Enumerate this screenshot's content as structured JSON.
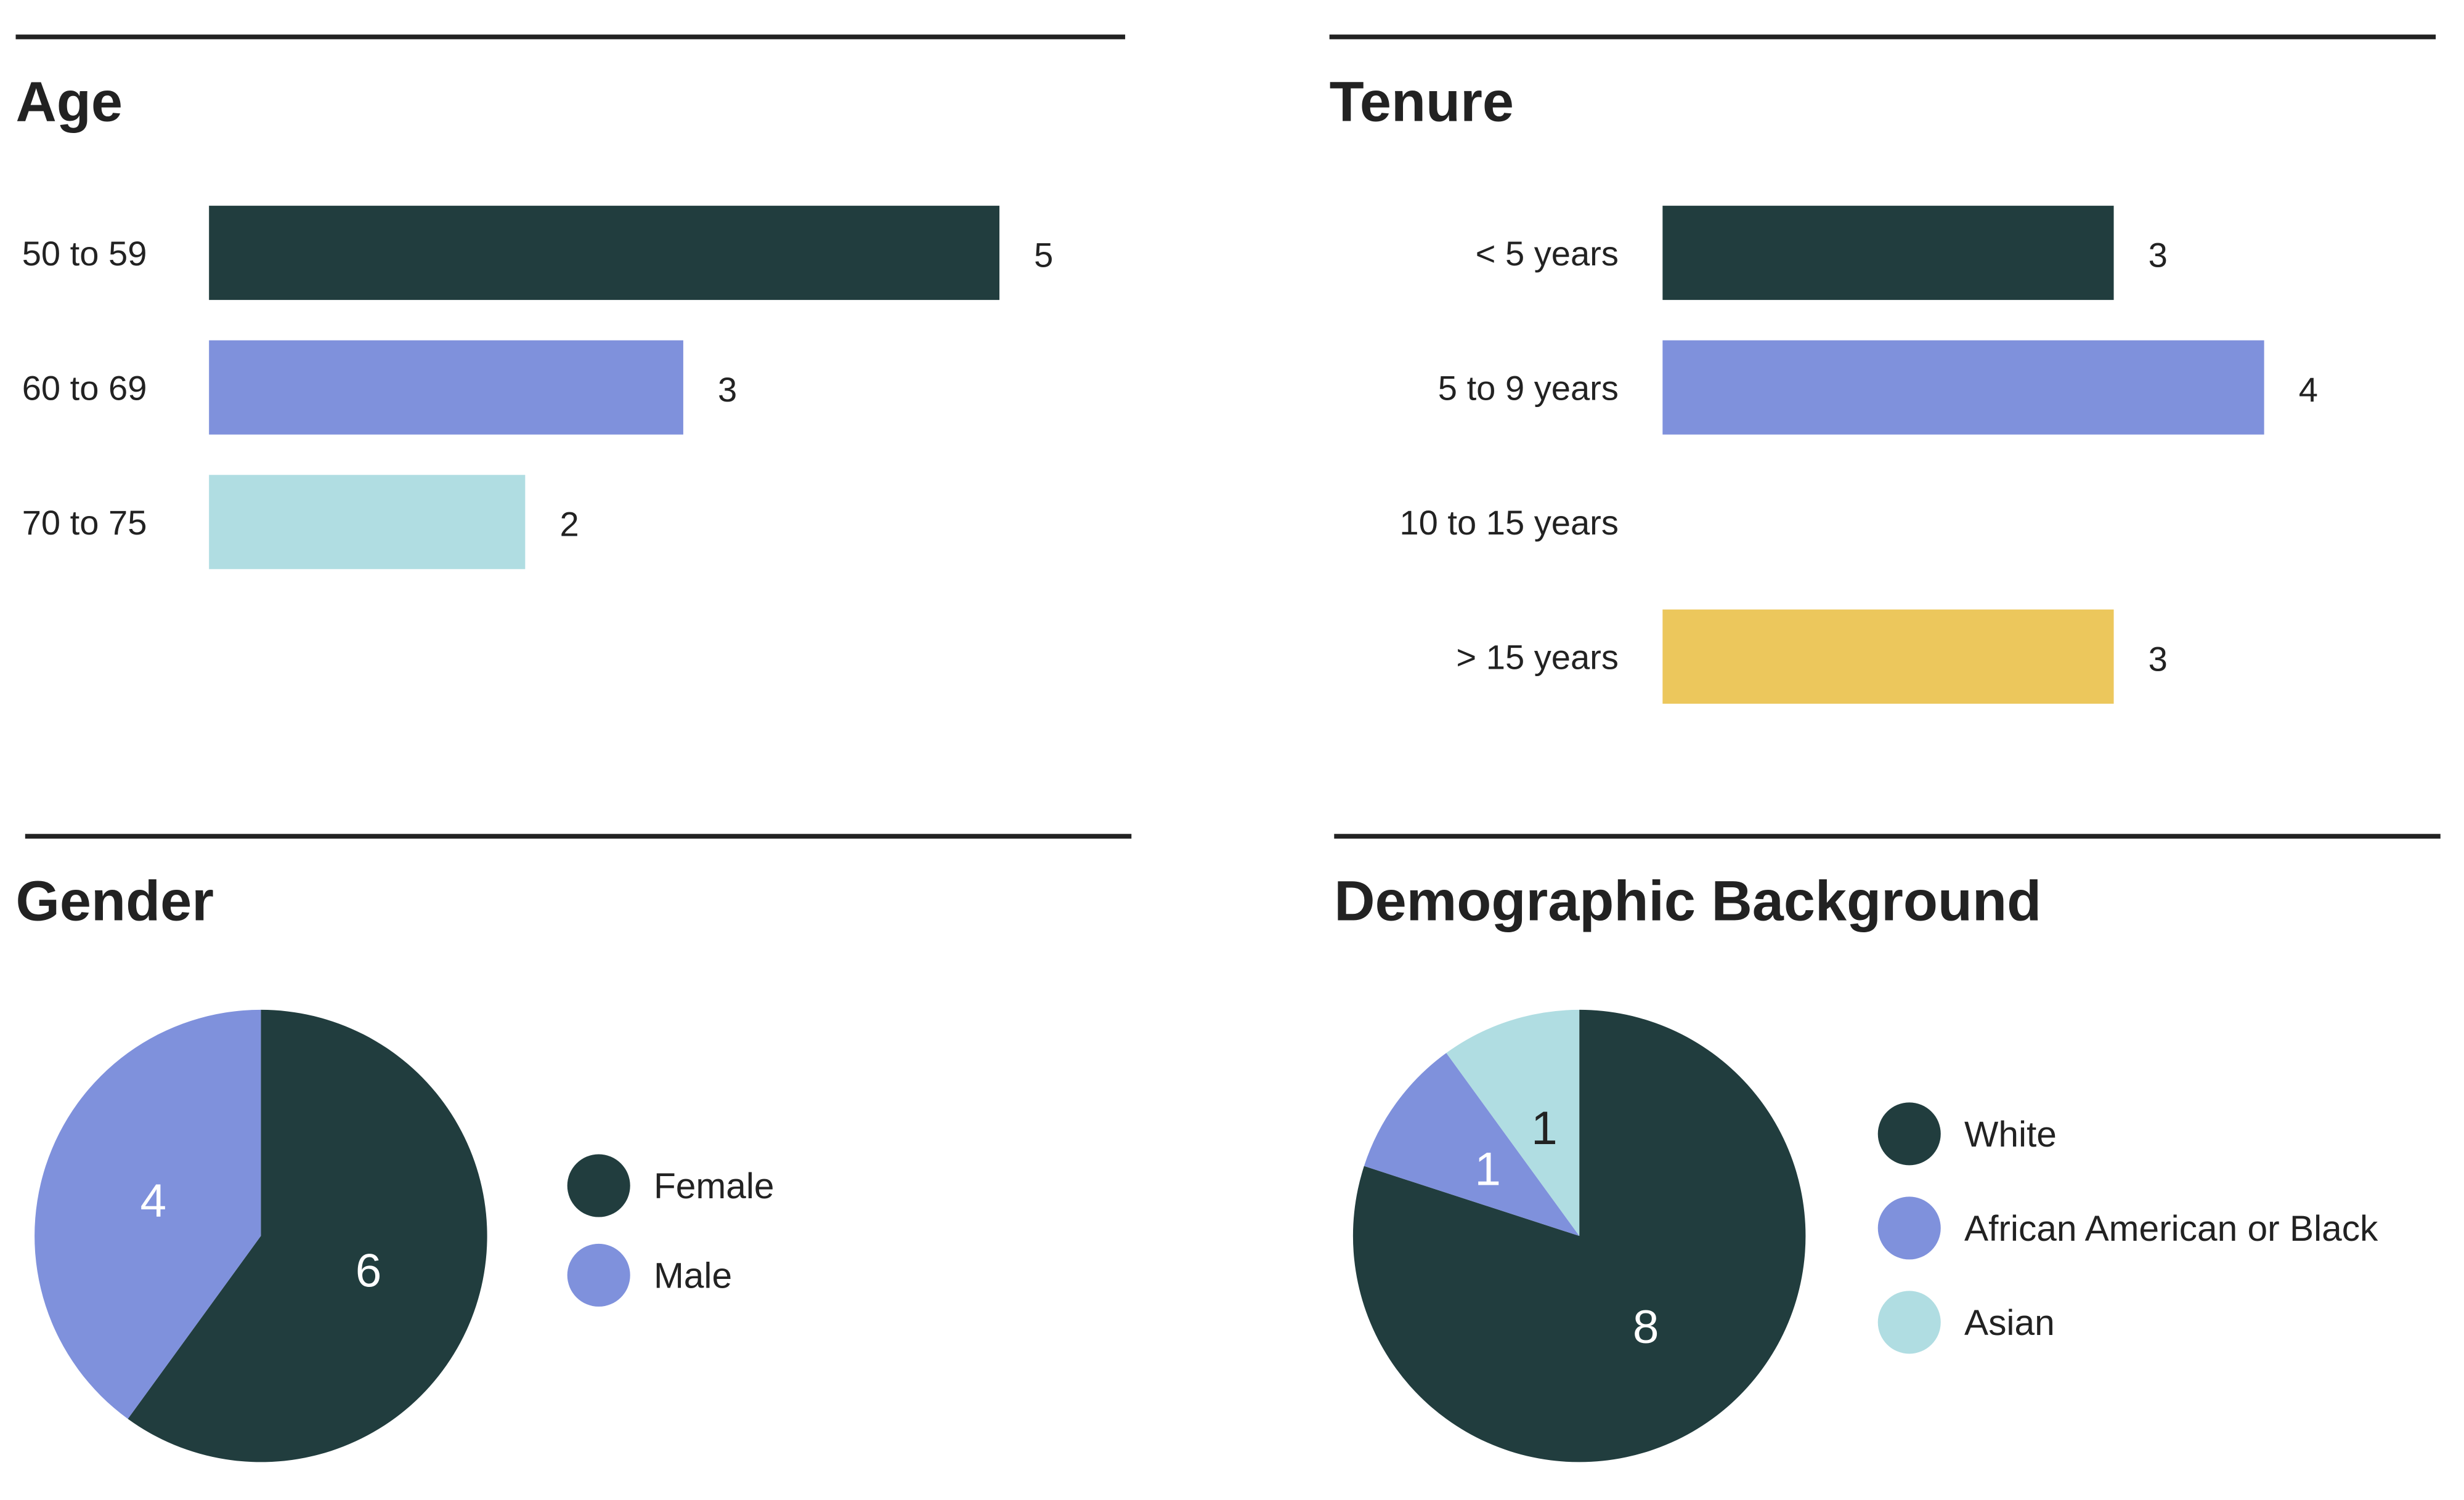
{
  "colors": {
    "dark": "#213d3e",
    "purple": "#7f91dc",
    "lightblue": "#b0dde2",
    "yellow": "#ecc75c",
    "text": "#222222"
  },
  "chart_data": [
    {
      "type": "bar",
      "orientation": "horizontal",
      "title": "Age",
      "categories": [
        "50 to 59",
        "60 to 69",
        "70 to 75"
      ],
      "values": [
        5,
        3,
        2
      ],
      "colors": [
        "#213d3e",
        "#7f91dc",
        "#b0dde2"
      ],
      "data_labels": true,
      "grid": false
    },
    {
      "type": "bar",
      "orientation": "horizontal",
      "title": "Tenure",
      "categories": [
        "< 5 years",
        "5 to 9 years",
        "10 to 15 years",
        "> 15 years"
      ],
      "values": [
        3,
        4,
        0,
        3
      ],
      "colors": [
        "#213d3e",
        "#7f91dc",
        "#b0dde2",
        "#ecc75c"
      ],
      "data_labels": true,
      "grid": false
    },
    {
      "type": "pie",
      "title": "Gender",
      "categories": [
        "Female",
        "Male"
      ],
      "values": [
        6,
        4
      ],
      "colors": [
        "#213d3e",
        "#7f91dc"
      ],
      "label_colors": [
        "#ffffff",
        "#ffffff"
      ],
      "legend": "right"
    },
    {
      "type": "pie",
      "title": "Demographic Background",
      "categories": [
        "White",
        "African American or Black",
        "Asian"
      ],
      "values": [
        8,
        1,
        1
      ],
      "colors": [
        "#213d3e",
        "#7f91dc",
        "#b0dde2"
      ],
      "label_colors": [
        "#ffffff",
        "#ffffff",
        "#222222"
      ],
      "legend": "right"
    }
  ]
}
